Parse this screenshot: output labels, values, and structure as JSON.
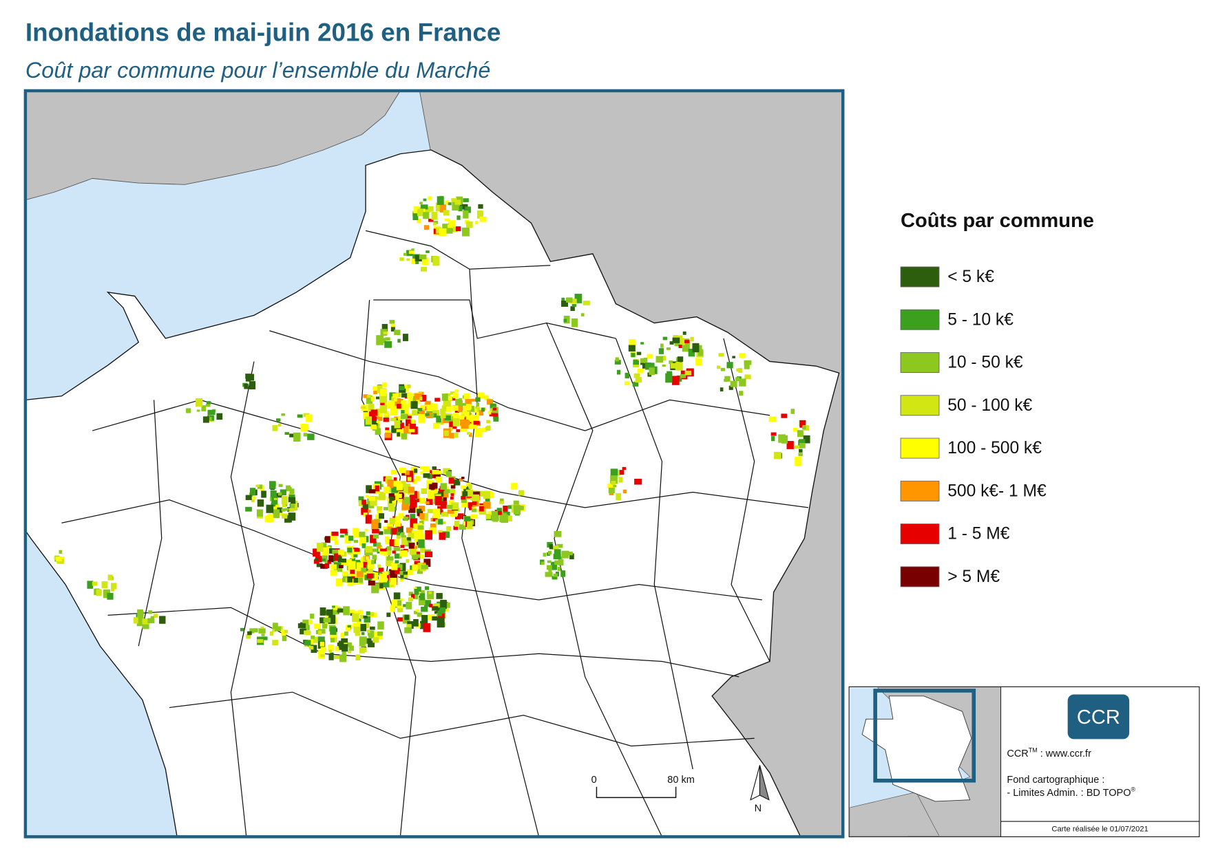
{
  "header": {
    "title": "Inondations de mai-juin 2016 en France",
    "subtitle": "Coût par commune pour l’ensemble du Marché"
  },
  "legend": {
    "title": "Coûts par commune",
    "items": [
      {
        "label": "< 5 k€",
        "color": "#2d5e0e"
      },
      {
        "label": "5 - 10 k€",
        "color": "#3ca01e"
      },
      {
        "label": "10 - 50 k€",
        "color": "#8cc81e"
      },
      {
        "label": "50 - 100 k€",
        "color": "#d2e614"
      },
      {
        "label": "100 - 500 k€",
        "color": "#ffff00"
      },
      {
        "label": "500 k€- 1 M€",
        "color": "#ff9600"
      },
      {
        "label": "1 - 5 M€",
        "color": "#e60000"
      },
      {
        "label": "> 5 M€",
        "color": "#780000"
      }
    ]
  },
  "scale_bar": {
    "start": "0",
    "end": "80 km"
  },
  "north": "N",
  "info": {
    "logo": "CCR",
    "site_name": "CCR",
    "site_mark": "TM",
    "site_url": " : www.ccr.fr",
    "source_title": "Fond cartographique :",
    "source_line": "- Limites Admin. : BD TOPO",
    "source_mark": "®",
    "date": "Carte réalisée le 01/07/2021"
  }
}
